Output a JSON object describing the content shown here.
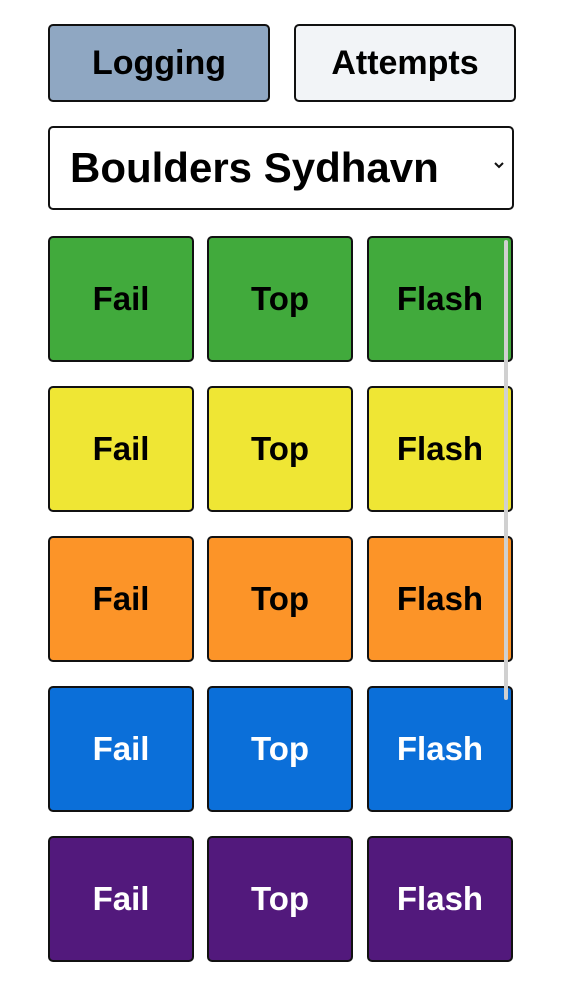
{
  "tabs": [
    {
      "label": "Logging",
      "active": true
    },
    {
      "label": "Attempts",
      "active": false
    }
  ],
  "gym_select": {
    "selected": "Boulders Sydhavn",
    "icon": "chevron-down-icon"
  },
  "grades": [
    {
      "color": "#41aa3c",
      "text_color": "#000000",
      "buttons": [
        "Fail",
        "Top",
        "Flash"
      ]
    },
    {
      "color": "#efe634",
      "text_color": "#000000",
      "buttons": [
        "Fail",
        "Top",
        "Flash"
      ]
    },
    {
      "color": "#fc9428",
      "text_color": "#000000",
      "buttons": [
        "Fail",
        "Top",
        "Flash"
      ]
    },
    {
      "color": "#0b6fd9",
      "text_color": "#ffffff",
      "buttons": [
        "Fail",
        "Top",
        "Flash"
      ]
    },
    {
      "color": "#52197c",
      "text_color": "#ffffff",
      "buttons": [
        "Fail",
        "Top",
        "Flash"
      ]
    }
  ]
}
